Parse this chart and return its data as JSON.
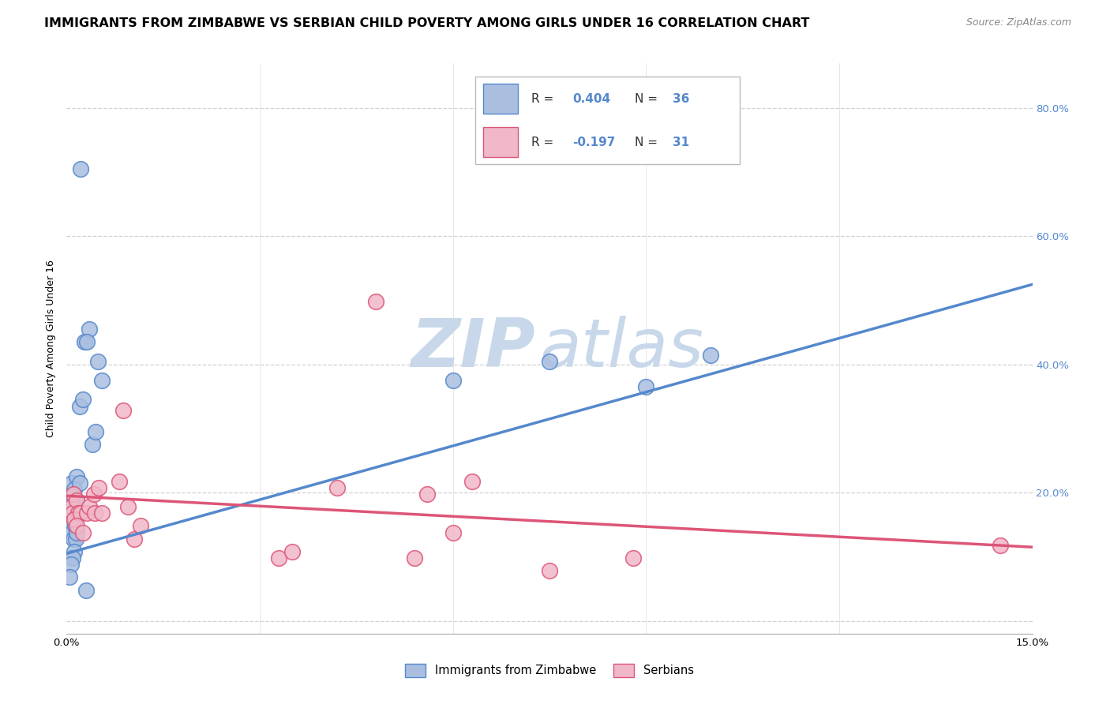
{
  "title": "IMMIGRANTS FROM ZIMBABWE VS SERBIAN CHILD POVERTY AMONG GIRLS UNDER 16 CORRELATION CHART",
  "source": "Source: ZipAtlas.com",
  "ylabel": "Child Poverty Among Girls Under 16",
  "legend_label_blue": "Immigrants from Zimbabwe",
  "legend_label_pink": "Serbians",
  "xlim": [
    0.0,
    0.15
  ],
  "ylim": [
    -0.02,
    0.87
  ],
  "blue_scatter_x": [
    0.0008,
    0.0015,
    0.0012,
    0.002,
    0.0009,
    0.001,
    0.0015,
    0.0008,
    0.0006,
    0.001,
    0.0012,
    0.0008,
    0.0013,
    0.001,
    0.0014,
    0.0018,
    0.0016,
    0.0012,
    0.0009,
    0.0007,
    0.0005,
    0.002,
    0.0025,
    0.0028,
    0.0035,
    0.0032,
    0.004,
    0.0045,
    0.0055,
    0.0048,
    0.0022,
    0.003,
    0.06,
    0.075,
    0.09,
    0.1
  ],
  "blue_scatter_y": [
    0.215,
    0.225,
    0.205,
    0.215,
    0.168,
    0.185,
    0.188,
    0.158,
    0.148,
    0.168,
    0.158,
    0.138,
    0.148,
    0.128,
    0.128,
    0.168,
    0.138,
    0.108,
    0.098,
    0.088,
    0.068,
    0.335,
    0.345,
    0.435,
    0.455,
    0.435,
    0.275,
    0.295,
    0.375,
    0.405,
    0.705,
    0.048,
    0.375,
    0.405,
    0.365,
    0.415
  ],
  "pink_scatter_x": [
    0.0008,
    0.001,
    0.0009,
    0.0015,
    0.0018,
    0.0012,
    0.0022,
    0.0015,
    0.0025,
    0.0032,
    0.0035,
    0.0042,
    0.005,
    0.0044,
    0.0055,
    0.0082,
    0.0088,
    0.0095,
    0.0105,
    0.0115,
    0.033,
    0.035,
    0.042,
    0.048,
    0.054,
    0.056,
    0.06,
    0.063,
    0.075,
    0.088,
    0.145
  ],
  "pink_scatter_y": [
    0.178,
    0.198,
    0.168,
    0.188,
    0.168,
    0.158,
    0.168,
    0.148,
    0.138,
    0.168,
    0.178,
    0.198,
    0.208,
    0.168,
    0.168,
    0.218,
    0.328,
    0.178,
    0.128,
    0.148,
    0.098,
    0.108,
    0.208,
    0.498,
    0.098,
    0.198,
    0.138,
    0.218,
    0.078,
    0.098,
    0.118
  ],
  "blue_line_x": [
    0.0,
    0.15
  ],
  "blue_line_y": [
    0.105,
    0.525
  ],
  "pink_line_x": [
    0.0,
    0.15
  ],
  "pink_line_y": [
    0.195,
    0.115
  ],
  "blue_color": "#5588cc",
  "blue_fill": "#aabfe0",
  "pink_color": "#dd5577",
  "pink_fill": "#f0b8c8",
  "grid_color": "#cccccc",
  "bg_color": "#ffffff",
  "right_tick_color": "#5588cc",
  "title_fontsize": 11.5,
  "source_fontsize": 9,
  "axis_label_fontsize": 9,
  "tick_fontsize": 9.5,
  "legend_fontsize": 11,
  "watermark_text1": "ZIP",
  "watermark_text2": "atlas",
  "watermark_color": "#c8d8ea",
  "watermark_fontsize": 62
}
